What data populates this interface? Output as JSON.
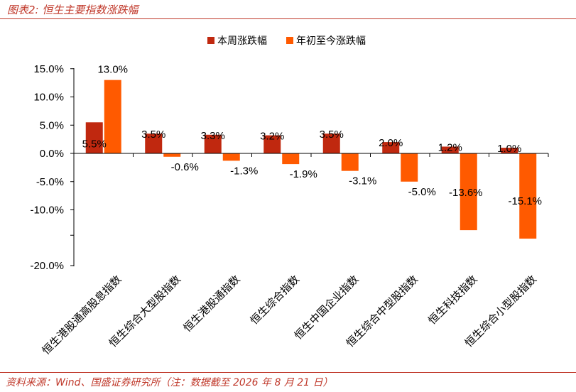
{
  "header": {
    "title": "图表2:  恒生主要指数涨跌幅"
  },
  "footer": {
    "source": "资料来源：Wind、国盛证券研究所（注：数据截至 2026 年 8 月 21 日）"
  },
  "colors": {
    "weekly": "#c0280f",
    "ytd": "#ff5a00",
    "accent": "#c0392b"
  },
  "chart_data": {
    "type": "bar",
    "categories": [
      "恒生港股通高股息指数",
      "恒生综合大型股指数",
      "恒生港股通指数",
      "恒生综合指数",
      "恒生中国企业指数",
      "恒生综合中型股指数",
      "恒生科技指数",
      "恒生综合小型股指数"
    ],
    "series": [
      {
        "name": "本周涨跌幅",
        "values": [
          5.5,
          3.5,
          3.3,
          3.2,
          3.5,
          2.0,
          1.2,
          1.0
        ],
        "labels": [
          "5.5%",
          "3.5%",
          "3.3%",
          "3.2%",
          "3.5%",
          "2.0%",
          "1.2%",
          "1.0%"
        ]
      },
      {
        "name": "年初至今涨跌幅",
        "values": [
          13.0,
          -0.6,
          -1.3,
          -1.9,
          -3.1,
          -5.0,
          -13.6,
          -15.1
        ],
        "labels": [
          "13.0%",
          "-0.6%",
          "-1.3%",
          "-1.9%",
          "-3.1%",
          "-5.0%",
          "-13.6%",
          "-15.1%"
        ]
      }
    ],
    "yticks": [
      15,
      10,
      5,
      0,
      -5,
      -10,
      -20
    ],
    "ytick_labels": [
      "15.0%",
      "10.0%",
      "5.0%",
      "0.0%",
      "-5.0%",
      "-10.0%",
      "-20.0%"
    ],
    "ylim": [
      -20,
      15
    ],
    "grid": false,
    "legend": "top-center"
  }
}
